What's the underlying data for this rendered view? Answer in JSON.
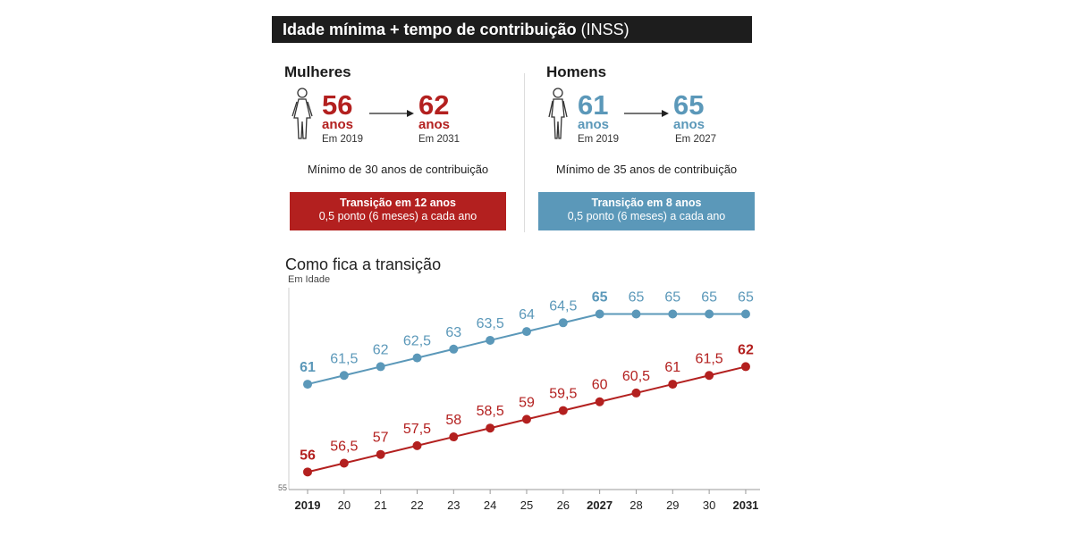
{
  "header": {
    "title_bold": "Idade mínima + tempo de contribuição",
    "title_regular": "(INSS)"
  },
  "women": {
    "label": "Mulheres",
    "from_value": "56",
    "from_unit": "anos",
    "from_year": "Em 2019",
    "to_value": "62",
    "to_unit": "anos",
    "to_year": "Em 2031",
    "minimum": "Mínimo de 30 anos de contribuição",
    "transition_title": "Transição em 12 anos",
    "transition_detail": "0,5 ponto (6 meses) a cada ano"
  },
  "men": {
    "label": "Homens",
    "from_value": "61",
    "from_unit": "anos",
    "from_year": "Em 2019",
    "to_value": "65",
    "to_unit": "anos",
    "to_year": "Em 2027",
    "minimum": "Mínimo de 35 anos de contribuição",
    "transition_title": "Transição em 8 anos",
    "transition_detail": "0,5 ponto (6 meses) a cada ano"
  },
  "colors": {
    "women": "#b3201f",
    "men": "#5b98b9",
    "title_bg": "#1d1d1d"
  },
  "chart_data": {
    "type": "line",
    "title": "Como fica a transição",
    "ylabel": "Em Idade",
    "ymin_label": "55",
    "ylim": [
      55,
      66.5
    ],
    "categories": [
      "2019",
      "20",
      "21",
      "22",
      "23",
      "24",
      "25",
      "26",
      "2027",
      "28",
      "29",
      "30",
      "2031"
    ],
    "bold_categories": [
      "2019",
      "2027",
      "2031"
    ],
    "series": [
      {
        "name": "Homens",
        "color": "#5b98b9",
        "values": [
          61,
          61.5,
          62,
          62.5,
          63,
          63.5,
          64,
          64.5,
          65,
          65,
          65,
          65,
          65
        ],
        "labels": [
          "61",
          "61,5",
          "62",
          "62,5",
          "63",
          "63,5",
          "64",
          "64,5",
          "65",
          "65",
          "65",
          "65",
          "65"
        ],
        "bold_indices": [
          0,
          8
        ]
      },
      {
        "name": "Mulheres",
        "color": "#b3201f",
        "values": [
          56,
          56.5,
          57,
          57.5,
          58,
          58.5,
          59,
          59.5,
          60,
          60.5,
          61,
          61.5,
          62
        ],
        "labels": [
          "56",
          "56,5",
          "57",
          "57,5",
          "58",
          "58,5",
          "59",
          "59,5",
          "60",
          "60,5",
          "61",
          "61,5",
          "62"
        ],
        "bold_indices": [
          0,
          12
        ]
      }
    ]
  }
}
